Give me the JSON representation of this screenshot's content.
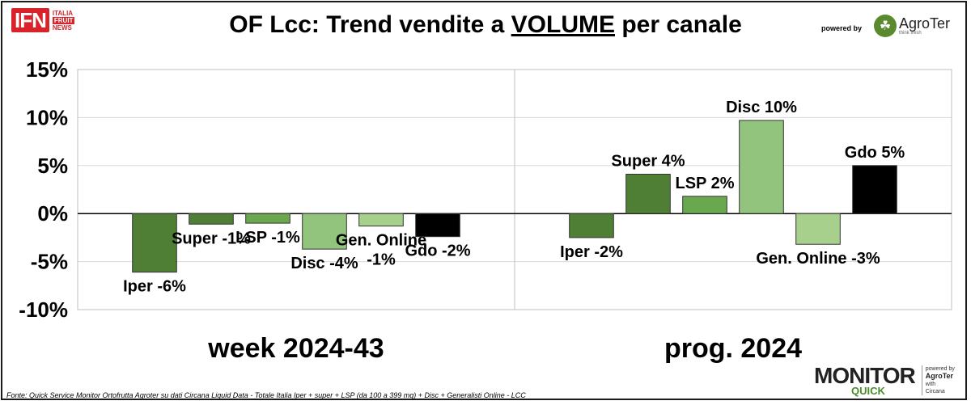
{
  "header": {
    "logo_ifn": "IFN",
    "logo_ifn_words": [
      "ITALIA",
      "FRUIT",
      "NEWS"
    ],
    "title_pre": "OF Lcc: Trend vendite a ",
    "title_underlined": "VOLUME",
    "title_post": " per canale",
    "powered_by": "powered by",
    "agroter_name": "AgroTer",
    "agroter_tagline": "think fresh"
  },
  "footer": {
    "source": "Fonte: Quick Service Monitor Ortofrutta Agroter su dati Circana Liquid Data - Totale Italia Iper + super + LSP (da 100 a 399 mq) + Disc + Generalisti Online - LCC",
    "monitor_word": "MONITOR",
    "monitor_quick": "QUICK",
    "side_powered": "powered by",
    "side_agroter": "AgroTer",
    "side_with": "with",
    "side_circana": "Circana"
  },
  "chart_data": {
    "type": "bar",
    "ylim": [
      -10,
      15
    ],
    "yticks": [
      -10,
      -5,
      0,
      5,
      10,
      15
    ],
    "ytick_labels": [
      "-10%",
      "-5%",
      "0%",
      "5%",
      "10%",
      "15%"
    ],
    "grid": true,
    "categories": [
      "Iper",
      "Super",
      "LSP",
      "Disc",
      "Gen. Online",
      "Gdo"
    ],
    "colors": [
      "#4f7f34",
      "#4f7f34",
      "#6aa84f",
      "#93c47d",
      "#a8d08d",
      "#000000"
    ],
    "groups": [
      {
        "name": "week 2024-43",
        "values": [
          -6.1,
          -1.1,
          -1.0,
          -3.7,
          -1.3,
          -2.4
        ],
        "labels": [
          "Iper -6%",
          "Super -1%",
          "LSP -1%",
          "Disc -4%",
          [
            "Gen. Online",
            "-1%"
          ],
          "Gdo -2%"
        ]
      },
      {
        "name": "prog. 2024",
        "values": [
          -2.5,
          4.1,
          1.8,
          9.7,
          -3.2,
          5.0
        ],
        "labels": [
          "Iper -2%",
          "Super 4%",
          "LSP 2%",
          "Disc 10%",
          "Gen. Online -3%",
          "Gdo 5%"
        ]
      }
    ]
  }
}
